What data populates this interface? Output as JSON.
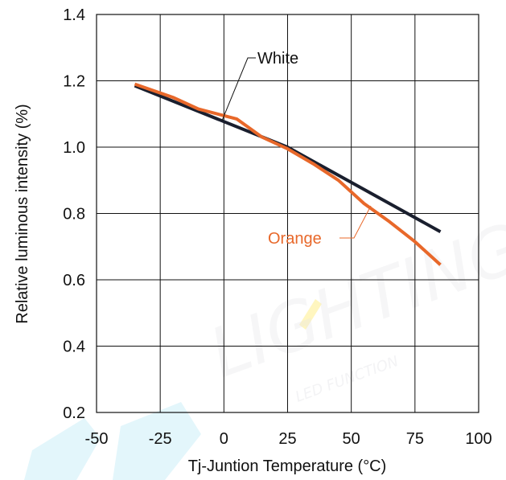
{
  "chart_data": {
    "type": "line",
    "xlabel": "Tj-Juntion Temperature (°C)",
    "ylabel": "Relative luminous intensity (%)",
    "xlim": [
      -50,
      100
    ],
    "ylim": [
      0.2,
      1.4
    ],
    "x_ticks": [
      "-50",
      "-25",
      "0",
      "25",
      "50",
      "75",
      "100"
    ],
    "y_ticks": [
      "0.2",
      "0.4",
      "0.6",
      "0.8",
      "1.0",
      "1.2",
      "1.4"
    ],
    "grid": true,
    "series": [
      {
        "name": "White",
        "color": "#1a1f2e",
        "points": [
          [
            -35,
            1.185
          ],
          [
            25,
            1.0
          ],
          [
            85,
            0.745
          ]
        ]
      },
      {
        "name": "Orange",
        "color": "#e8682a",
        "points": [
          [
            -35,
            1.19
          ],
          [
            -20,
            1.15
          ],
          [
            -10,
            1.115
          ],
          [
            5,
            1.085
          ],
          [
            15,
            1.03
          ],
          [
            25,
            0.995
          ],
          [
            35,
            0.95
          ],
          [
            45,
            0.9
          ],
          [
            55,
            0.83
          ],
          [
            65,
            0.775
          ],
          [
            75,
            0.715
          ],
          [
            85,
            0.645
          ]
        ]
      }
    ],
    "annotations": [
      {
        "text": "White",
        "series": "White"
      },
      {
        "text": "Orange",
        "series": "Orange"
      }
    ]
  },
  "watermark": {
    "brand": "LIGHTING",
    "sub": "LED FUNCTION"
  }
}
